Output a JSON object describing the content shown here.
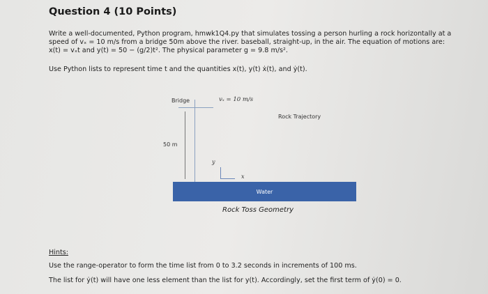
{
  "question": {
    "title": "Question 4 (10 Points)",
    "line1": "Write a well-documented, Python program, hmwk1Q4.py that simulates tossing a person hurling a rock horizontally at a",
    "line2": "speed of vₓ = 10 m/s from a bridge 50m above the river. baseball, straight-up, in the air.  The equation of motions are:",
    "line3": "x(t) = vₓt and y(t) = 50 − (g/2)t².  The physical parameter g = 9.8 m/s².",
    "line4": "Use Python lists to represent time t and the quantities x(t), y(t) ẋ(t), and ẏ(t)."
  },
  "diagram": {
    "bridge": "Bridge",
    "velocity": "vₓ = 10 m/s",
    "trajectory": "Rock Trajectory",
    "height": "50 m",
    "y_axis": "y",
    "x_axis": "x",
    "water": "Water",
    "caption": "Rock Toss Geometry",
    "water_color": "#3a63a8"
  },
  "hints": {
    "title": "Hints:",
    "line1": "Use the range-operator to form the time list from 0 to 3.2 seconds in increments of 100 ms.",
    "line2": "The list for ẏ(t) will have one less element than the list for y(t).  Accordingly, set the first term of ẏ(0) = 0."
  }
}
